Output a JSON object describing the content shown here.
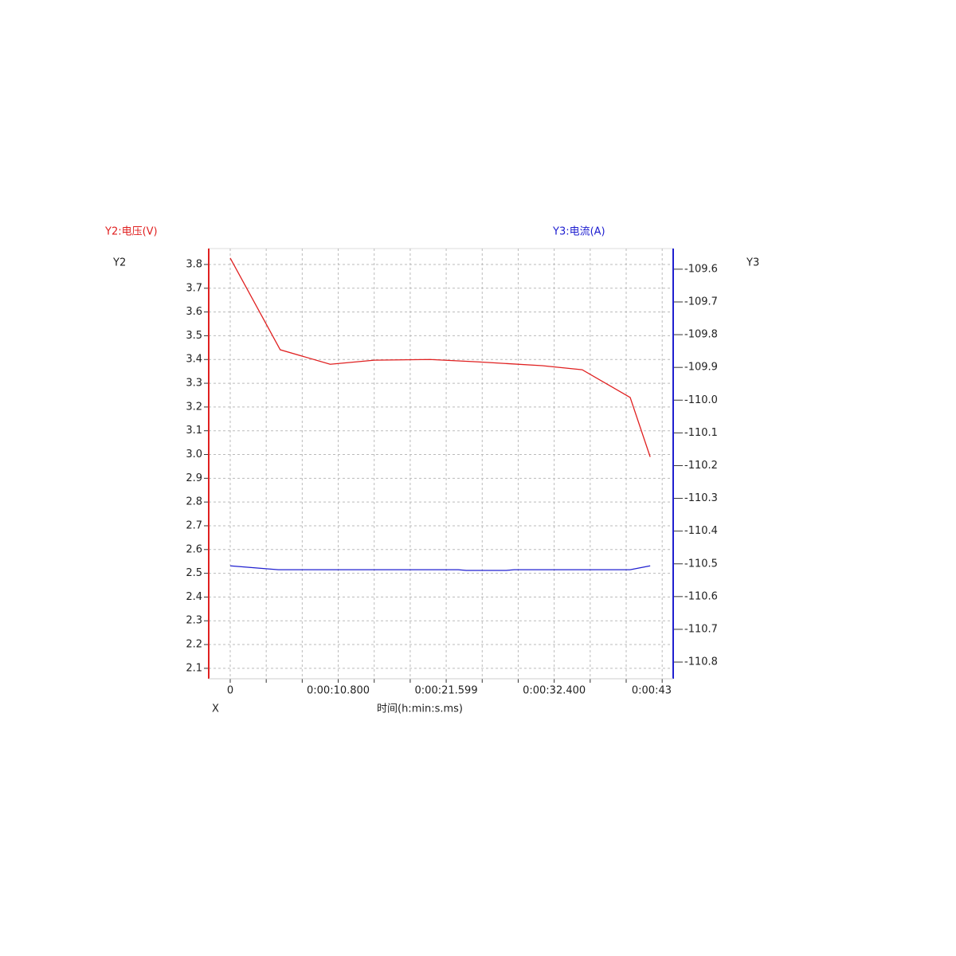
{
  "chart_data": {
    "type": "line",
    "y_title": "Y2:电压(V)",
    "y2_title": "Y3:电流(A)",
    "y_name": "Y2",
    "y2_name": "Y3",
    "x_name": "X",
    "x_title": "时间(h:min:s.ms)",
    "x_gridlines": [
      3.6,
      7.2,
      14.4,
      18.0,
      25.2,
      28.8,
      36.0,
      39.6
    ],
    "xlim": [
      -2.15,
      44.3
    ],
    "xticks": [
      0,
      {
        "value": 10.8,
        "label": "0:00:10.800"
      },
      {
        "value": 21.599,
        "label": "0:00:21.599"
      },
      {
        "value": 32.4,
        "label": "0:00:32.400"
      },
      {
        "value": 43.2,
        "label": "0:00:43"
      }
    ],
    "ylim": [
      2.056,
      3.867
    ],
    "yticks": [
      3.8,
      3.7,
      3.6,
      3.5,
      3.4,
      3.3,
      3.2,
      3.1,
      {
        "value": 3.0,
        "label": "3.0"
      },
      2.9,
      2.8,
      2.7,
      2.6,
      2.5,
      2.4,
      2.3,
      2.2,
      2.1
    ],
    "y2lim": [
      -110.851,
      -109.537
    ],
    "y2ticks": [
      -109.6,
      -109.7,
      -109.8,
      -109.9,
      {
        "value": -110.0,
        "label": "-110.0"
      },
      -110.1,
      -110.2,
      -110.3,
      -110.4,
      -110.5,
      -110.6,
      -110.7,
      -110.8
    ],
    "grid": true,
    "series": [
      {
        "color": "#e02020",
        "x": [
          0,
          5.0,
          10.0,
          14.4,
          20.0,
          24.8,
          31.2,
          35.2,
          40.0,
          42.0
        ],
        "values": [
          3.827,
          3.441,
          3.38,
          3.397,
          3.4,
          3.39,
          3.374,
          3.357,
          3.24,
          2.99
        ]
      },
      {
        "color": "#2020d0",
        "axis": "y2",
        "x": [
          0,
          4.8,
          22.8,
          23.6,
          27.6,
          28.4,
          40.0,
          42.0
        ],
        "values": [
          -110.506,
          -110.518,
          -110.518,
          -110.52,
          -110.52,
          -110.518,
          -110.518,
          -110.506
        ]
      }
    ]
  }
}
